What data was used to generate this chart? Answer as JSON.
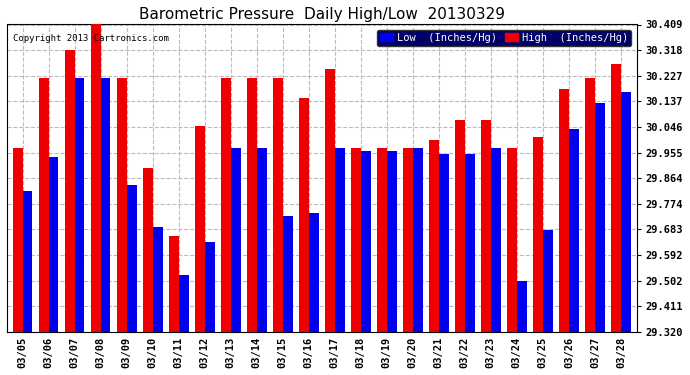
{
  "title": "Barometric Pressure  Daily High/Low  20130329",
  "copyright": "Copyright 2013 Cartronics.com",
  "legend_low": "Low  (Inches/Hg)",
  "legend_high": "High  (Inches/Hg)",
  "dates": [
    "03/05",
    "03/06",
    "03/07",
    "03/08",
    "03/09",
    "03/10",
    "03/11",
    "03/12",
    "03/13",
    "03/14",
    "03/15",
    "03/16",
    "03/17",
    "03/18",
    "03/19",
    "03/20",
    "03/21",
    "03/22",
    "03/23",
    "03/24",
    "03/25",
    "03/26",
    "03/27",
    "03/28"
  ],
  "low": [
    29.82,
    29.94,
    30.22,
    30.22,
    29.84,
    29.69,
    29.52,
    29.64,
    29.97,
    29.97,
    29.73,
    29.74,
    29.97,
    29.96,
    29.96,
    29.97,
    29.95,
    29.95,
    29.97,
    29.5,
    29.68,
    30.04,
    30.13,
    30.17
  ],
  "high": [
    29.97,
    30.22,
    30.32,
    30.41,
    30.22,
    29.9,
    29.66,
    30.05,
    30.22,
    30.22,
    30.22,
    30.15,
    30.25,
    29.97,
    29.97,
    29.97,
    30.0,
    30.07,
    30.07,
    29.97,
    30.01,
    30.18,
    30.22,
    30.27
  ],
  "ymin": 29.32,
  "ymax": 30.409,
  "yticks": [
    29.32,
    29.411,
    29.502,
    29.592,
    29.683,
    29.774,
    29.864,
    29.955,
    30.046,
    30.137,
    30.227,
    30.318,
    30.409
  ],
  "low_color": "#0000ee",
  "high_color": "#ee0000",
  "bg_color": "#ffffff",
  "plot_bg_color": "#ffffff",
  "grid_color": "#bbbbbb",
  "bar_width": 0.38,
  "title_fontsize": 11,
  "tick_fontsize": 7.5,
  "legend_fontsize": 7.5
}
